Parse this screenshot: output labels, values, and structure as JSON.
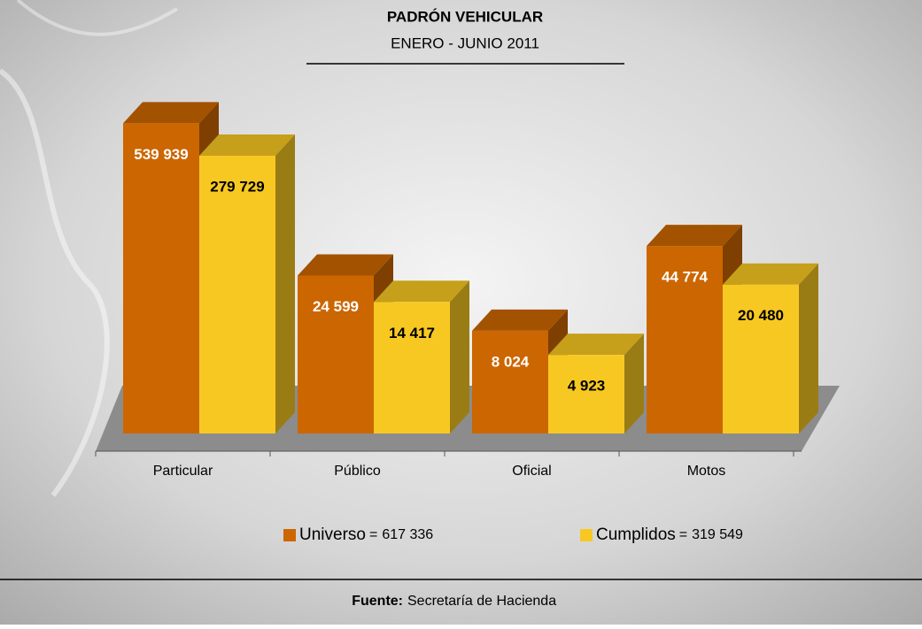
{
  "chart_data": {
    "type": "bar3d",
    "title": "PADRÓN VEHICULAR",
    "subtitle": "ENERO - JUNIO 2011",
    "categories": [
      "Particular",
      "Público",
      "Oficial",
      "Motos"
    ],
    "log_scale": true,
    "ylim": [
      1000,
      1000000
    ],
    "series": [
      {
        "name": "Universo",
        "color": "#cc6600",
        "values": [
          539939,
          24599,
          8024,
          44774
        ],
        "value_labels": [
          "539 939",
          "24 599",
          "8 024",
          "44 774"
        ],
        "total": 617336,
        "total_label": "617 336"
      },
      {
        "name": "Cumplidos",
        "color": "#f8c822",
        "values": [
          279729,
          14417,
          4923,
          20480
        ],
        "value_labels": [
          "279 729",
          "14 417",
          "4 923",
          "20 480"
        ],
        "total": 319549,
        "total_label": "319 549"
      }
    ],
    "legend_separator": "=",
    "source_label": "Fuente:",
    "source": "Secretaría de Hacienda"
  }
}
